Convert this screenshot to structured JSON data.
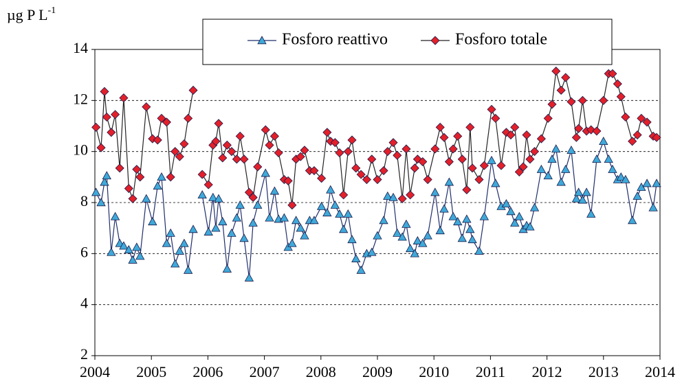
{
  "chart_data": {
    "type": "line",
    "y_label": "µg P L",
    "y_label_sup": "-1",
    "xlim": [
      2004,
      2014
    ],
    "xticks": [
      2004,
      2005,
      2006,
      2007,
      2008,
      2009,
      2010,
      2011,
      2012,
      2013,
      2014
    ],
    "ylim": [
      2,
      14
    ],
    "yticks": [
      2,
      4,
      6,
      8,
      10,
      12,
      14
    ],
    "grid": true,
    "x": [
      2004.02,
      2004.11,
      2004.17,
      2004.21,
      2004.29,
      2004.36,
      2004.44,
      2004.51,
      2004.6,
      2004.67,
      2004.74,
      2004.8,
      2004.91,
      2005.02,
      2005.11,
      2005.18,
      2005.27,
      2005.34,
      2005.42,
      2005.5,
      2005.58,
      2005.65,
      2005.74,
      2005.82,
      2005.9,
      2006.01,
      2006.09,
      2006.14,
      2006.19,
      2006.26,
      2006.34,
      2006.42,
      2006.51,
      2006.57,
      2006.64,
      2006.73,
      2006.8,
      2006.88,
      2007.02,
      2007.09,
      2007.18,
      2007.25,
      2007.35,
      2007.42,
      2007.49,
      2007.56,
      2007.64,
      2007.71,
      2007.8,
      2007.88,
      2008.01,
      2008.11,
      2008.17,
      2008.25,
      2008.33,
      2008.4,
      2008.48,
      2008.55,
      2008.62,
      2008.71,
      2008.81,
      2008.9,
      2009.0,
      2009.11,
      2009.18,
      2009.28,
      2009.35,
      2009.44,
      2009.51,
      2009.58,
      2009.66,
      2009.71,
      2009.8,
      2009.89,
      2010.02,
      2010.11,
      2010.18,
      2010.27,
      2010.34,
      2010.42,
      2010.5,
      2010.58,
      2010.64,
      2010.68,
      2010.8,
      2010.89,
      2011.02,
      2011.09,
      2011.19,
      2011.28,
      2011.36,
      2011.43,
      2011.51,
      2011.58,
      2011.64,
      2011.7,
      2011.78,
      2011.9,
      2012.02,
      2012.09,
      2012.16,
      2012.25,
      2012.33,
      2012.43,
      2012.52,
      2012.56,
      2012.63,
      2012.7,
      2012.78,
      2012.88,
      2013.0,
      2013.09,
      2013.16,
      2013.25,
      2013.31,
      2013.39,
      2013.51,
      2013.6,
      2013.67,
      2013.77,
      2013.88,
      2013.94
    ],
    "series": [
      {
        "name": "Fosforo reattivo",
        "color": "#3fa9d9",
        "marker": "triangle",
        "values": [
          8.4,
          8.0,
          8.8,
          9.05,
          6.05,
          7.45,
          6.4,
          6.3,
          6.15,
          5.75,
          6.25,
          5.9,
          8.15,
          7.25,
          8.65,
          9.0,
          6.4,
          6.8,
          5.6,
          6.1,
          6.4,
          5.35,
          6.95,
          null,
          8.3,
          6.85,
          8.2,
          7.0,
          8.15,
          7.25,
          5.4,
          6.8,
          7.4,
          7.9,
          6.6,
          5.05,
          7.2,
          7.9,
          9.15,
          7.4,
          8.45,
          7.35,
          7.4,
          6.25,
          6.4,
          7.3,
          7.0,
          6.7,
          7.3,
          7.3,
          7.85,
          7.6,
          8.5,
          7.9,
          7.55,
          6.95,
          7.55,
          6.55,
          5.8,
          5.35,
          6.0,
          6.05,
          6.7,
          7.3,
          8.25,
          8.2,
          6.8,
          6.65,
          7.15,
          6.2,
          6.0,
          6.5,
          6.4,
          6.7,
          8.4,
          6.9,
          7.75,
          8.8,
          7.45,
          7.25,
          6.6,
          7.35,
          6.95,
          6.55,
          6.1,
          7.45,
          9.65,
          8.75,
          7.85,
          7.95,
          7.65,
          7.2,
          7.45,
          6.95,
          7.1,
          7.05,
          7.8,
          9.3,
          9.05,
          9.7,
          10.1,
          8.8,
          9.3,
          10.05,
          8.15,
          8.4,
          8.1,
          8.4,
          7.55,
          9.7,
          10.4,
          9.7,
          9.3,
          8.9,
          9.0,
          8.9,
          7.3,
          8.25,
          8.6,
          8.75,
          7.8,
          8.75
        ]
      },
      {
        "name": "Fosforo totale",
        "color": "#e3202a",
        "marker": "diamond",
        "values": [
          10.95,
          10.15,
          12.35,
          11.35,
          10.75,
          11.45,
          9.35,
          12.1,
          8.55,
          8.15,
          9.3,
          9.0,
          11.75,
          10.5,
          10.45,
          11.3,
          11.15,
          9.0,
          10.0,
          9.8,
          10.3,
          11.3,
          12.4,
          null,
          9.1,
          8.7,
          10.25,
          10.4,
          11.1,
          9.75,
          10.25,
          10.0,
          9.7,
          10.6,
          9.7,
          8.4,
          8.2,
          9.4,
          10.85,
          10.25,
          10.6,
          9.95,
          8.9,
          8.85,
          7.9,
          9.7,
          9.8,
          10.05,
          9.25,
          9.25,
          8.95,
          10.75,
          10.4,
          10.35,
          9.95,
          8.3,
          10.0,
          10.45,
          9.35,
          9.1,
          8.9,
          9.7,
          8.9,
          9.25,
          10.0,
          10.35,
          9.85,
          8.15,
          10.1,
          8.3,
          9.35,
          9.7,
          9.6,
          8.9,
          10.1,
          10.95,
          10.55,
          9.6,
          10.1,
          10.6,
          9.7,
          8.5,
          10.95,
          9.35,
          8.9,
          9.45,
          11.65,
          11.3,
          9.45,
          10.75,
          10.65,
          10.95,
          9.2,
          9.4,
          10.65,
          9.7,
          10.0,
          10.5,
          11.3,
          11.85,
          13.15,
          12.4,
          12.9,
          11.95,
          10.55,
          10.9,
          12.0,
          10.8,
          10.85,
          10.8,
          12.0,
          13.05,
          13.05,
          12.65,
          12.15,
          11.35,
          10.4,
          10.65,
          11.3,
          11.15,
          10.6,
          10.55
        ]
      }
    ]
  }
}
